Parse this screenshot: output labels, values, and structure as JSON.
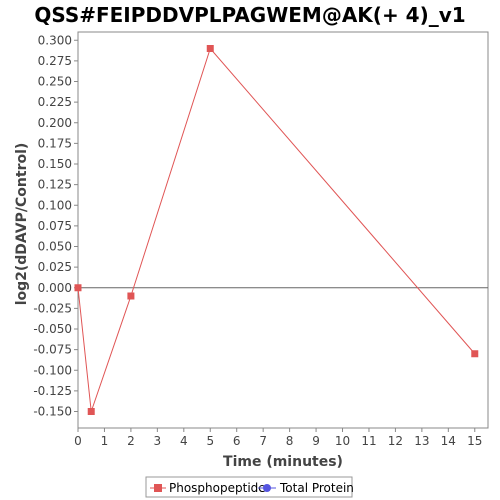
{
  "chart_data": {
    "type": "line",
    "title": "QSS#FEIPDDVPLPAGWEM@AK(+ 4)_v1",
    "xlabel": "Time (minutes)",
    "ylabel": "log2(dDAVP/Control)",
    "xlim": [
      0,
      15.5
    ],
    "ylim": [
      -0.17,
      0.31
    ],
    "xticks": [
      "0",
      "1",
      "2",
      "3",
      "4",
      "5",
      "6",
      "7",
      "8",
      "9",
      "10",
      "11",
      "12",
      "13",
      "14",
      "15"
    ],
    "yticks": [
      "0.300",
      "0.275",
      "0.250",
      "0.225",
      "0.200",
      "0.175",
      "0.150",
      "0.125",
      "0.100",
      "0.075",
      "0.050",
      "0.025",
      "0.000",
      "-0.025",
      "-0.050",
      "-0.075",
      "-0.100",
      "-0.125",
      "-0.150"
    ],
    "ytick_values": [
      0.3,
      0.275,
      0.25,
      0.225,
      0.2,
      0.175,
      0.15,
      0.125,
      0.1,
      0.075,
      0.05,
      0.025,
      0,
      -0.025,
      -0.05,
      -0.075,
      -0.1,
      -0.125,
      -0.15
    ],
    "series": [
      {
        "name": "Phosphopeptide",
        "color": "#e05555",
        "marker": "square",
        "x": [
          0,
          0.5,
          2,
          5,
          15
        ],
        "y": [
          0.0,
          -0.15,
          -0.01,
          0.29,
          -0.08
        ]
      }
    ],
    "legend": {
      "position": "bottom",
      "entries": [
        {
          "name": "Phosphopeptide",
          "color": "#e05555",
          "marker": "square"
        },
        {
          "name": "Total Protein",
          "color": "#5555e0",
          "marker": "circle"
        }
      ]
    },
    "zero_line": true,
    "grid": false
  }
}
